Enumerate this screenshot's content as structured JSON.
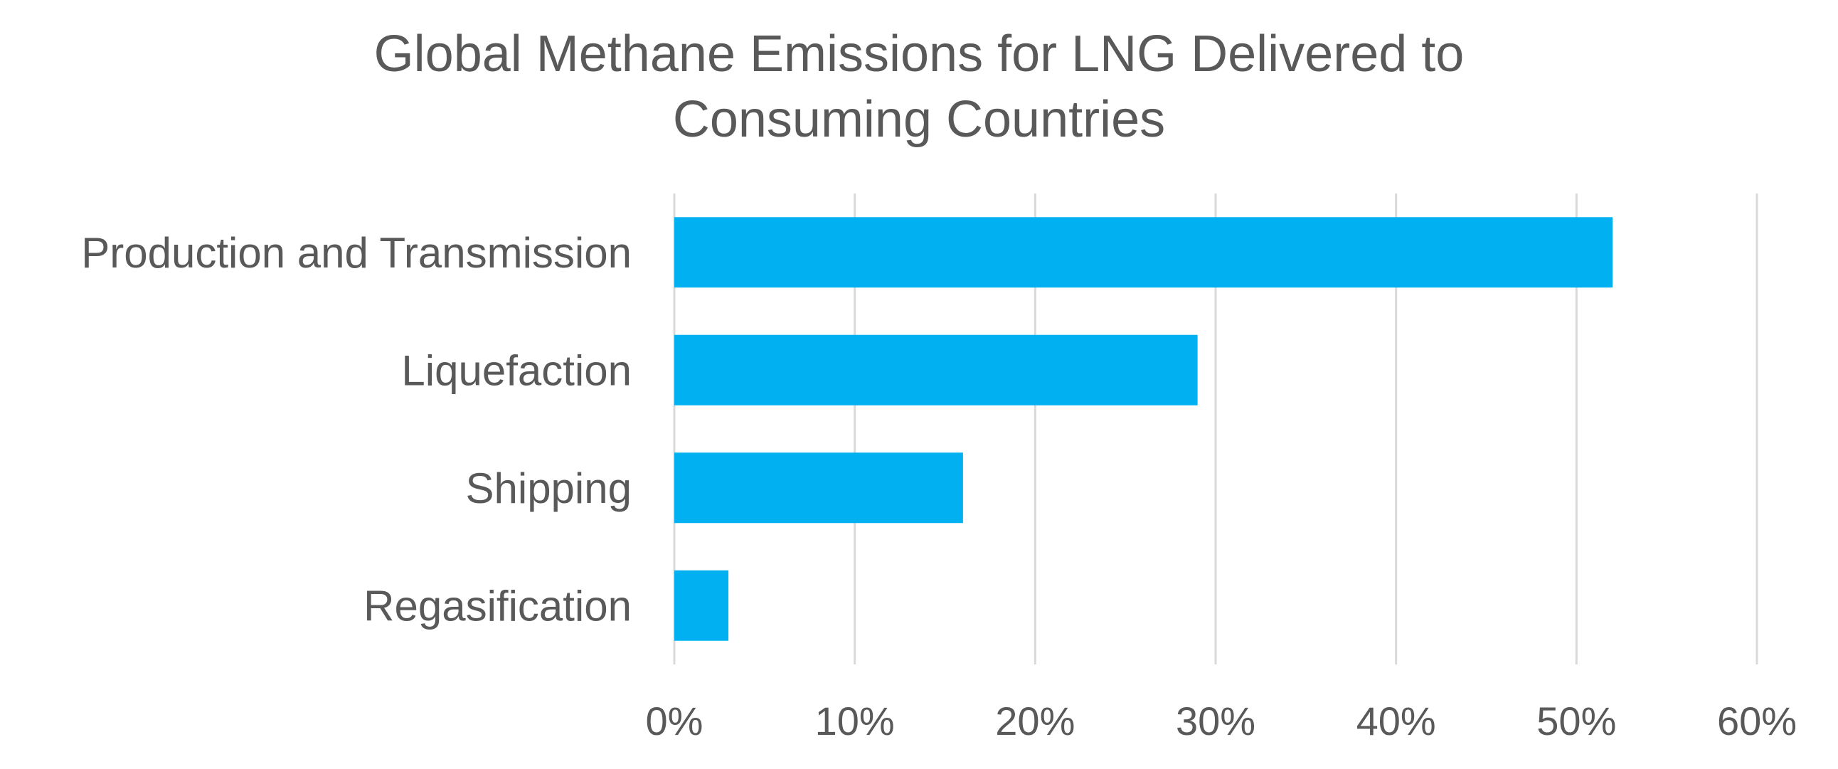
{
  "chart_data": {
    "type": "bar",
    "orientation": "horizontal",
    "title_lines": [
      "Global Methane Emissions for LNG Delivered to",
      "Consuming Countries"
    ],
    "categories": [
      "Production and Transmission",
      "Liquefaction",
      "Shipping",
      "Regasification"
    ],
    "values": [
      52,
      29,
      16,
      3
    ],
    "value_unit": "%",
    "xlim": [
      0,
      60
    ],
    "xticks": [
      0,
      10,
      20,
      30,
      40,
      50,
      60
    ],
    "xtick_labels": [
      "0%",
      "10%",
      "20%",
      "30%",
      "40%",
      "50%",
      "60%"
    ],
    "xlabel": "",
    "ylabel": "",
    "grid": "vertical",
    "legend": "none",
    "bar_color": "#00B0F0",
    "grid_color": "#D9D9D9",
    "text_color": "#595959"
  }
}
